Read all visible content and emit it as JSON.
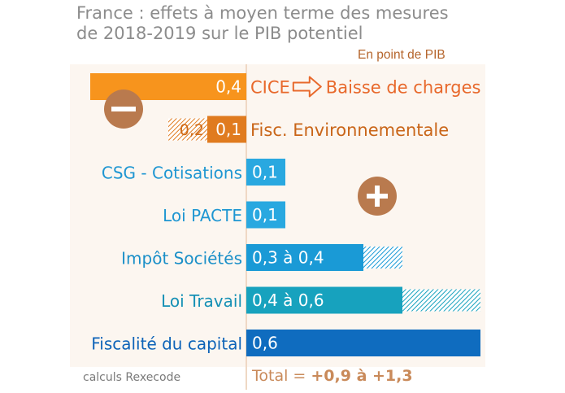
{
  "title_line1": "France : effets à moyen terme des mesures",
  "title_line2": "de 2018-2019 sur le PIB potentiel",
  "unit": "En point de PIB",
  "source": "calculs Rexecode",
  "total": {
    "label": "Total = ",
    "value": "+0,9 à +1,3"
  },
  "chart_data": {
    "type": "bar",
    "orientation": "horizontal",
    "categories": [
      "CICE → Baisse de charges",
      "Fisc. Environnementale",
      "CSG - Cotisations",
      "Loi PACTE",
      "Impôt Sociétés",
      "Loi Travail",
      "Fiscalité du capital"
    ],
    "series": [
      {
        "values": [
          -0.4,
          -0.1,
          0.1,
          0.1,
          0.3,
          0.4,
          0.6
        ]
      },
      {
        "values": [
          0,
          -0.1,
          0,
          0,
          0.1,
          0.2,
          0
        ]
      }
    ],
    "rows": [
      {
        "label": "CICE",
        "label_suffix": "Baisse de charges",
        "value": -0.4,
        "value_label": "0,4",
        "extra": 0,
        "extra_label": "",
        "side": "neg",
        "color": "#f7941d",
        "text_color": "#e8692c"
      },
      {
        "label": "Fisc. Environnementale",
        "value": -0.1,
        "value_label": "0,1",
        "extra": -0.1,
        "extra_label": "0,2",
        "side": "neg",
        "color": "#e07b1f",
        "text_color": "#c96518"
      },
      {
        "label": "CSG - Cotisations",
        "value": 0.1,
        "value_label": "0,1",
        "extra": 0,
        "extra_label": "",
        "side": "pos",
        "color": "#29a8e0",
        "text_color": "#1e96d2"
      },
      {
        "label": "Loi PACTE",
        "value": 0.1,
        "value_label": "0,1",
        "extra": 0,
        "extra_label": "",
        "side": "pos",
        "color": "#29a8e0",
        "text_color": "#1e96d2"
      },
      {
        "label": "Impôt Sociétés",
        "value": 0.3,
        "value_label": "0,3 à 0,4",
        "extra": 0.1,
        "extra_label": "",
        "side": "pos",
        "color": "#1a9ad6",
        "text_color": "#1a8fc8"
      },
      {
        "label": "Loi Travail",
        "value": 0.4,
        "value_label": "0,4 à 0,6",
        "extra": 0.2,
        "extra_label": "",
        "side": "pos",
        "color": "#17a2be",
        "text_color": "#1590b5"
      },
      {
        "label": "Fiscalité du capital",
        "value": 0.6,
        "value_label": "0,6",
        "extra": 0,
        "extra_label": "",
        "side": "pos",
        "color": "#0f6cbf",
        "text_color": "#0d63b8"
      }
    ],
    "xlim": [
      -0.5,
      0.7
    ],
    "badges": [
      {
        "sign": "−",
        "color": "#b97a4e"
      },
      {
        "sign": "+",
        "color": "#b97a4e"
      }
    ],
    "grid": false
  }
}
